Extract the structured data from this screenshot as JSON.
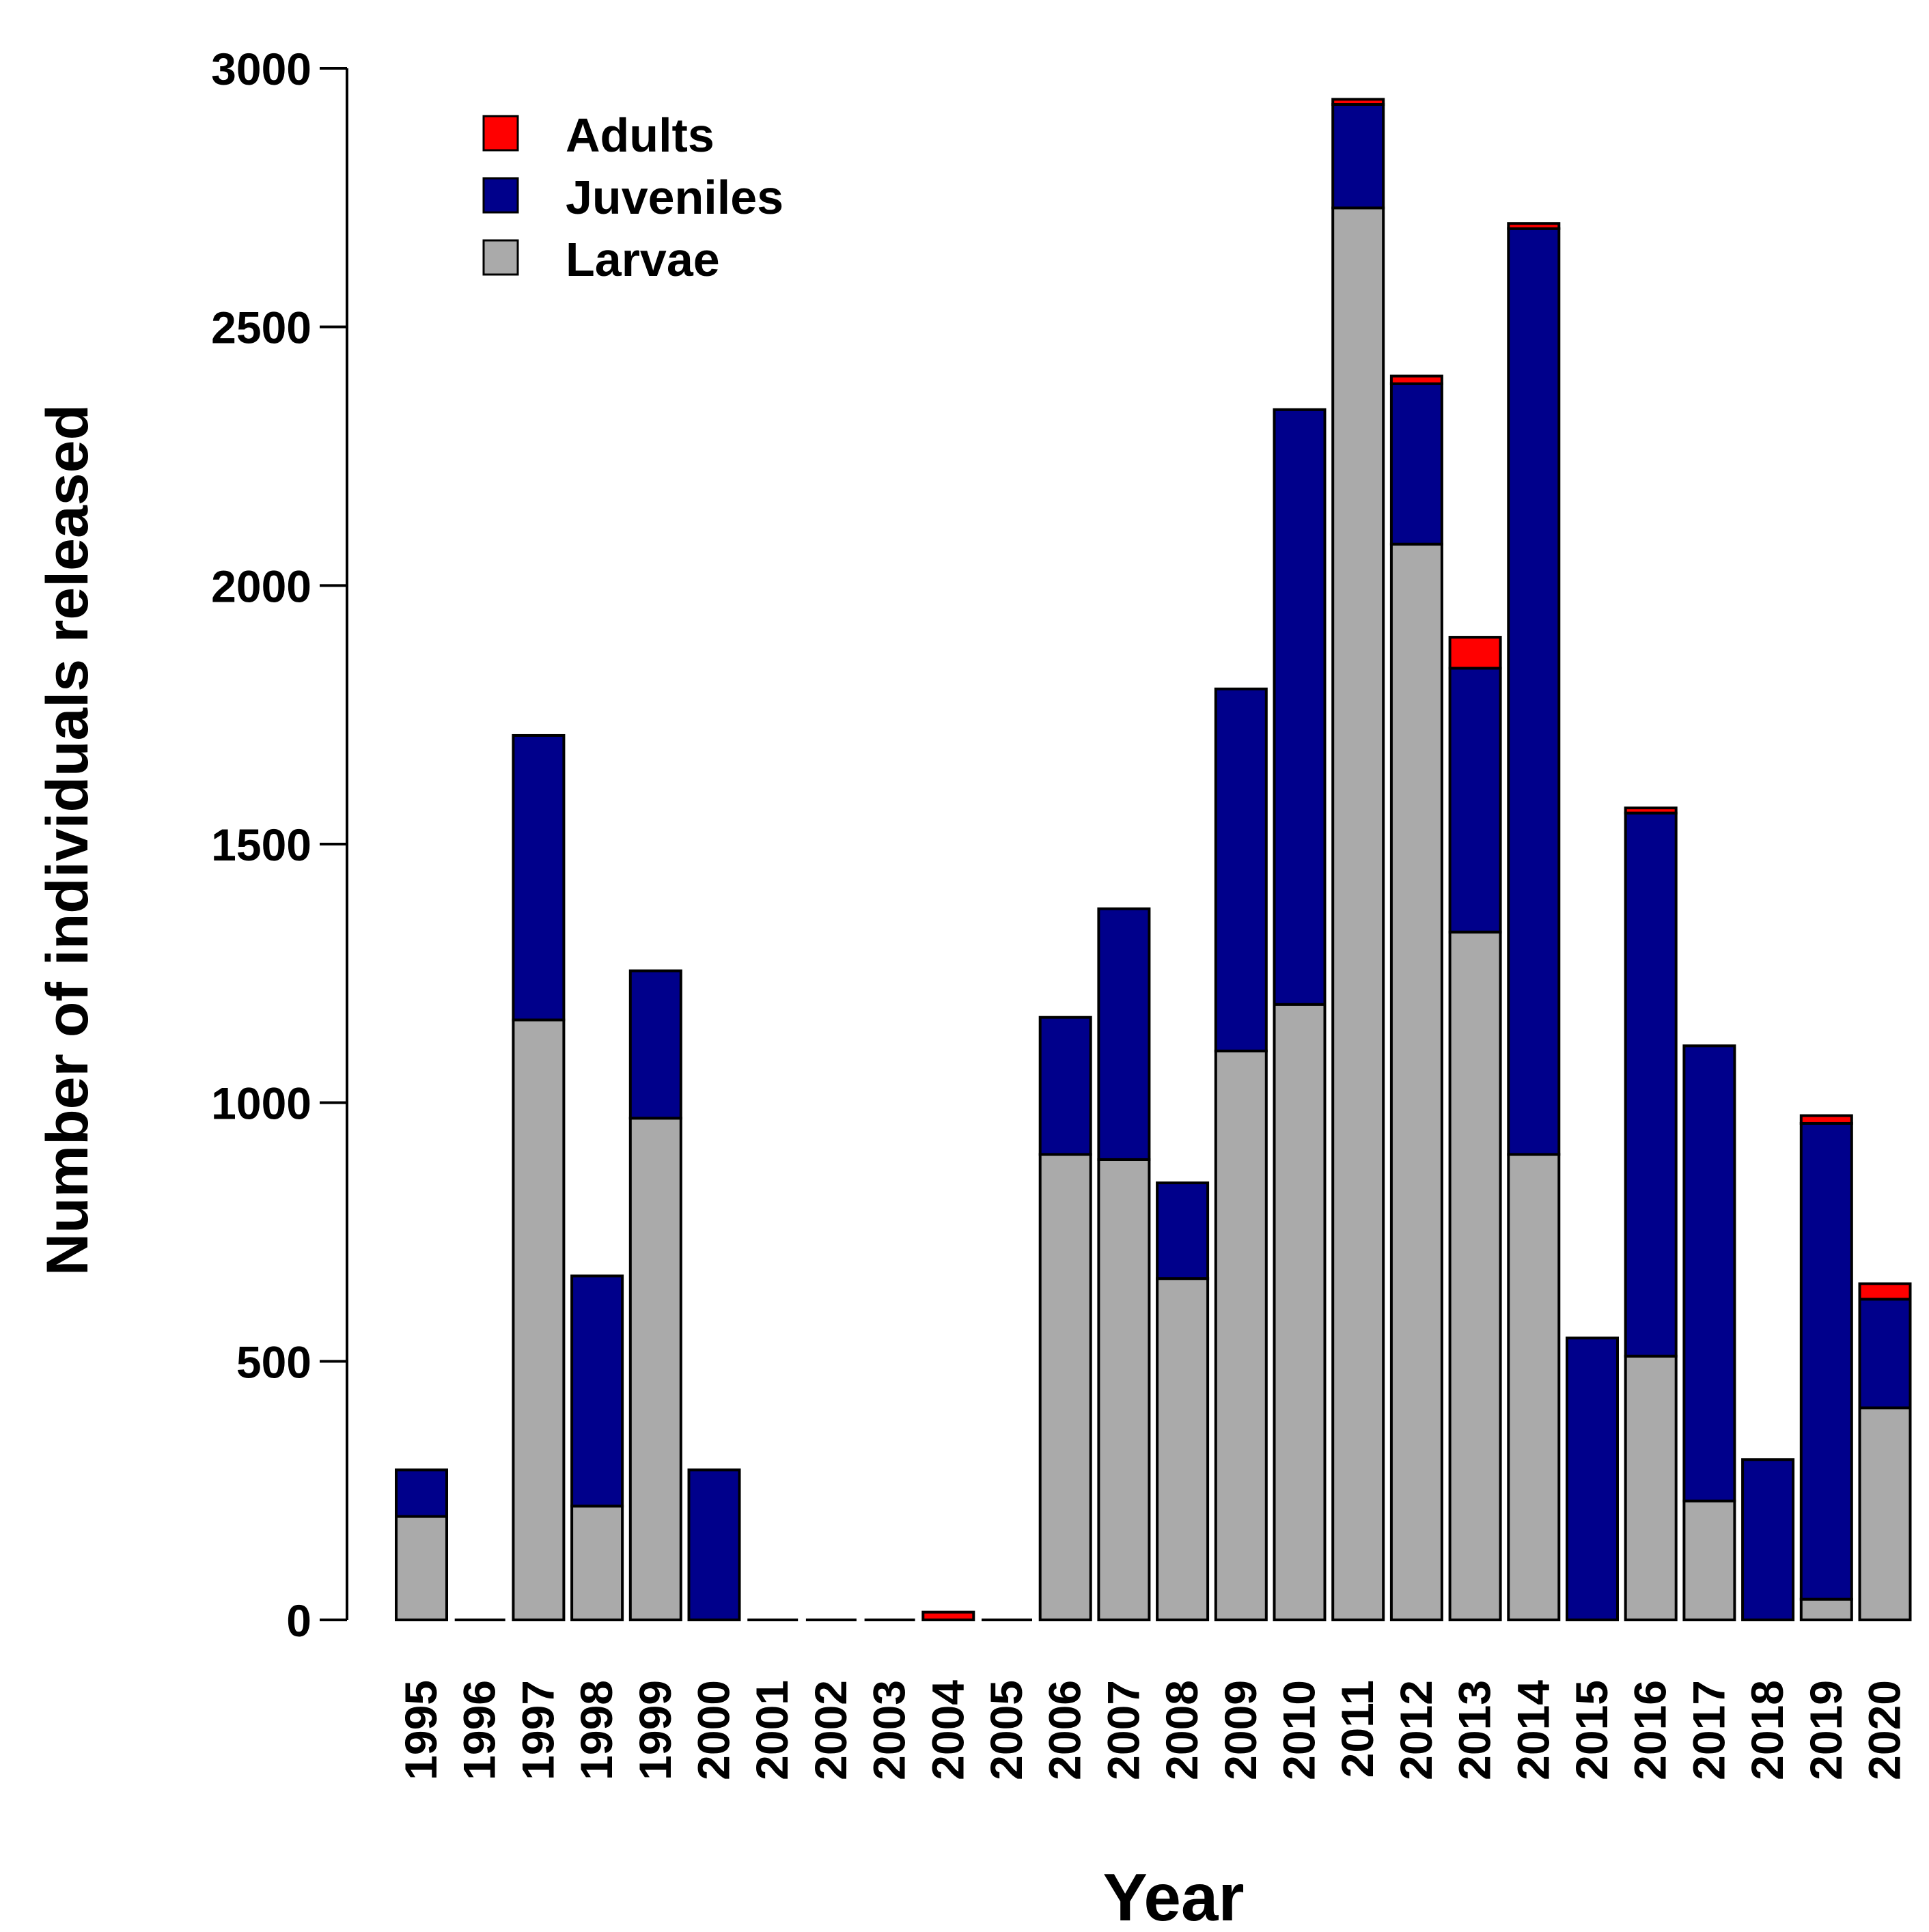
{
  "chart_data": {
    "type": "bar",
    "stacked": true,
    "categories": [
      "1995",
      "1996",
      "1997",
      "1998",
      "1999",
      "2000",
      "2001",
      "2002",
      "2003",
      "2004",
      "2005",
      "2006",
      "2007",
      "2008",
      "2009",
      "2010",
      "2011",
      "2012",
      "2013",
      "2014",
      "2015",
      "2016",
      "2017",
      "2018",
      "2019",
      "2020"
    ],
    "series": [
      {
        "name": "Larvae",
        "color": "#aaaaaa",
        "values": [
          200,
          0,
          1160,
          220,
          970,
          0,
          0,
          0,
          0,
          0,
          0,
          900,
          890,
          660,
          1100,
          1190,
          2730,
          2080,
          1330,
          900,
          0,
          510,
          230,
          0,
          40,
          410
        ]
      },
      {
        "name": "Juveniles",
        "color": "#00008b",
        "values": [
          90,
          0,
          550,
          445,
          285,
          290,
          0,
          0,
          0,
          0,
          0,
          265,
          485,
          185,
          700,
          1150,
          200,
          310,
          510,
          1790,
          545,
          1050,
          880,
          310,
          920,
          210
        ]
      },
      {
        "name": "Adults",
        "color": "#ff0000",
        "values": [
          0,
          0,
          0,
          0,
          0,
          0,
          0,
          0,
          0,
          15,
          0,
          0,
          0,
          0,
          0,
          0,
          10,
          15,
          60,
          10,
          0,
          10,
          0,
          0,
          15,
          30
        ]
      }
    ],
    "legend_order": [
      "Adults",
      "Juveniles",
      "Larvae"
    ],
    "legend_position": "top-left",
    "title": "",
    "xlabel": "Year",
    "ylabel": "Number of individuals released",
    "ylim": [
      0,
      3000
    ],
    "yticks": [
      "0",
      "500",
      "1000",
      "1500",
      "2000",
      "2500",
      "3000"
    ],
    "grid": false
  }
}
